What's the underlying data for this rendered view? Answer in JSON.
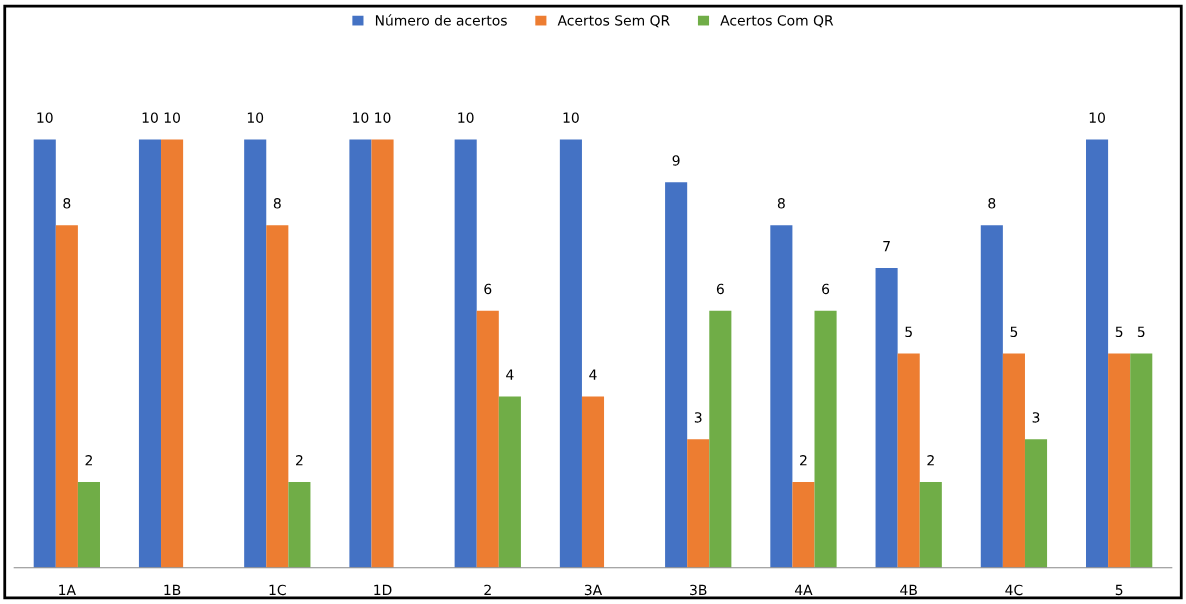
{
  "chart_data": {
    "type": "bar",
    "categories": [
      "1A",
      "1B",
      "1C",
      "1D",
      "2",
      "3A",
      "3B",
      "4A",
      "4B",
      "4C",
      "5"
    ],
    "series": [
      {
        "name": "Número de acertos",
        "color": "#4472c4",
        "values": [
          10,
          10,
          10,
          10,
          10,
          10,
          9,
          8,
          7,
          8,
          10
        ]
      },
      {
        "name": "Acertos Sem QR",
        "color": "#ed7d31",
        "values": [
          8,
          10,
          8,
          10,
          6,
          4,
          3,
          2,
          5,
          5,
          5
        ]
      },
      {
        "name": "Acertos Com QR",
        "color": "#70ad47",
        "values": [
          2,
          null,
          2,
          null,
          4,
          null,
          6,
          6,
          2,
          3,
          5
        ]
      }
    ],
    "data_labels": true,
    "legend": "top",
    "grid": false
  }
}
